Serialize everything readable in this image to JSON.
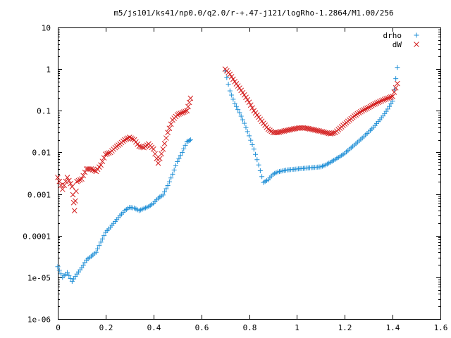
{
  "chart_data": {
    "type": "scatter",
    "title": "m5/js101/ks41/np0.0/q2.0/r-+.47-j121/logRho-1.2864/M1.00/256",
    "xlabel": "",
    "ylabel": "",
    "xlim": [
      0,
      1.6
    ],
    "ylim": [
      1e-06,
      10
    ],
    "yscale": "log",
    "grid": false,
    "legend_position": "top-right",
    "x_ticks": [
      {
        "v": 0,
        "label": "0"
      },
      {
        "v": 0.2,
        "label": "0.2"
      },
      {
        "v": 0.4,
        "label": "0.4"
      },
      {
        "v": 0.6,
        "label": "0.6"
      },
      {
        "v": 0.8,
        "label": "0.8"
      },
      {
        "v": 1.0,
        "label": "1"
      },
      {
        "v": 1.2,
        "label": "1.2"
      },
      {
        "v": 1.4,
        "label": "1.4"
      },
      {
        "v": 1.6,
        "label": "1.6"
      }
    ],
    "y_ticks": [
      {
        "v": 10,
        "label": "10"
      },
      {
        "v": 1,
        "label": "1"
      },
      {
        "v": 0.1,
        "label": "0.1"
      },
      {
        "v": 0.01,
        "label": "0.01"
      },
      {
        "v": 0.001,
        "label": "0.001"
      },
      {
        "v": 0.0001,
        "label": "0.0001"
      },
      {
        "v": 1e-05,
        "label": "1e-05"
      },
      {
        "v": 1e-06,
        "label": "1e-06"
      }
    ],
    "series": [
      {
        "name": "drho",
        "marker": "plus",
        "color": "#1f8fd6",
        "segments": [
          {
            "x": [
              0.0,
              0.02,
              0.04,
              0.06,
              0.08,
              0.1,
              0.12,
              0.14,
              0.16,
              0.18,
              0.2,
              0.22,
              0.24,
              0.26,
              0.28,
              0.3,
              0.32,
              0.34,
              0.36,
              0.38,
              0.4,
              0.42,
              0.44,
              0.46,
              0.48,
              0.5,
              0.52,
              0.54,
              0.555
            ],
            "y": [
              1.8e-05,
              1e-05,
              1.3e-05,
              8e-06,
              1.2e-05,
              1.7e-05,
              2.6e-05,
              3.2e-05,
              4e-05,
              7e-05,
              0.00012,
              0.00016,
              0.00022,
              0.0003,
              0.0004,
              0.00048,
              0.00046,
              0.0004,
              0.00045,
              0.0005,
              0.0006,
              0.0008,
              0.00095,
              0.0016,
              0.003,
              0.006,
              0.01,
              0.018,
              0.02
            ]
          },
          {
            "x": [
              0.7,
              0.72,
              0.74,
              0.76,
              0.78,
              0.8,
              0.82,
              0.84,
              0.86,
              0.88,
              0.9,
              0.92,
              0.94,
              0.96,
              0.98,
              1.0,
              1.02,
              1.04,
              1.06,
              1.08,
              1.1,
              1.12,
              1.14,
              1.16,
              1.18,
              1.2,
              1.22,
              1.24,
              1.26,
              1.28,
              1.3,
              1.32,
              1.34,
              1.36,
              1.38,
              1.4,
              1.42
            ],
            "y": [
              0.9,
              0.3,
              0.15,
              0.09,
              0.05,
              0.025,
              0.012,
              0.005,
              0.0019,
              0.0022,
              0.003,
              0.0034,
              0.0036,
              0.0038,
              0.0039,
              0.004,
              0.0041,
              0.0042,
              0.0043,
              0.0044,
              0.0045,
              0.005,
              0.0058,
              0.0068,
              0.008,
              0.0095,
              0.012,
              0.015,
              0.019,
              0.024,
              0.031,
              0.04,
              0.055,
              0.075,
              0.11,
              0.17,
              1.1
            ]
          }
        ]
      },
      {
        "name": "dW",
        "marker": "cross",
        "color": "#d42020",
        "segments": [
          {
            "x": [
              0.0,
              0.02,
              0.04,
              0.06,
              0.07,
              0.08,
              0.1,
              0.12,
              0.14,
              0.16,
              0.18,
              0.2,
              0.22,
              0.24,
              0.26,
              0.28,
              0.3,
              0.32,
              0.34,
              0.36,
              0.38,
              0.4,
              0.42,
              0.44,
              0.46,
              0.48,
              0.5,
              0.52,
              0.54,
              0.555
            ],
            "y": [
              0.0025,
              0.0013,
              0.0025,
              0.0015,
              0.0004,
              0.002,
              0.0023,
              0.004,
              0.004,
              0.0035,
              0.005,
              0.009,
              0.01,
              0.013,
              0.016,
              0.02,
              0.023,
              0.02,
              0.014,
              0.013,
              0.016,
              0.012,
              0.0055,
              0.012,
              0.03,
              0.06,
              0.08,
              0.09,
              0.1,
              0.2
            ]
          },
          {
            "x": [
              0.7,
              0.72,
              0.74,
              0.76,
              0.78,
              0.8,
              0.82,
              0.84,
              0.86,
              0.88,
              0.9,
              0.92,
              0.94,
              0.96,
              0.98,
              1.0,
              1.02,
              1.04,
              1.06,
              1.08,
              1.1,
              1.12,
              1.14,
              1.16,
              1.18,
              1.2,
              1.22,
              1.24,
              1.26,
              1.28,
              1.3,
              1.32,
              1.34,
              1.36,
              1.38,
              1.4,
              1.42
            ],
            "y": [
              1.0,
              0.75,
              0.5,
              0.35,
              0.24,
              0.16,
              0.1,
              0.07,
              0.05,
              0.036,
              0.03,
              0.03,
              0.032,
              0.034,
              0.036,
              0.038,
              0.039,
              0.038,
              0.036,
              0.034,
              0.032,
              0.03,
              0.028,
              0.03,
              0.038,
              0.048,
              0.06,
              0.075,
              0.09,
              0.105,
              0.12,
              0.14,
              0.16,
              0.18,
              0.2,
              0.22,
              0.45
            ]
          }
        ]
      }
    ]
  }
}
